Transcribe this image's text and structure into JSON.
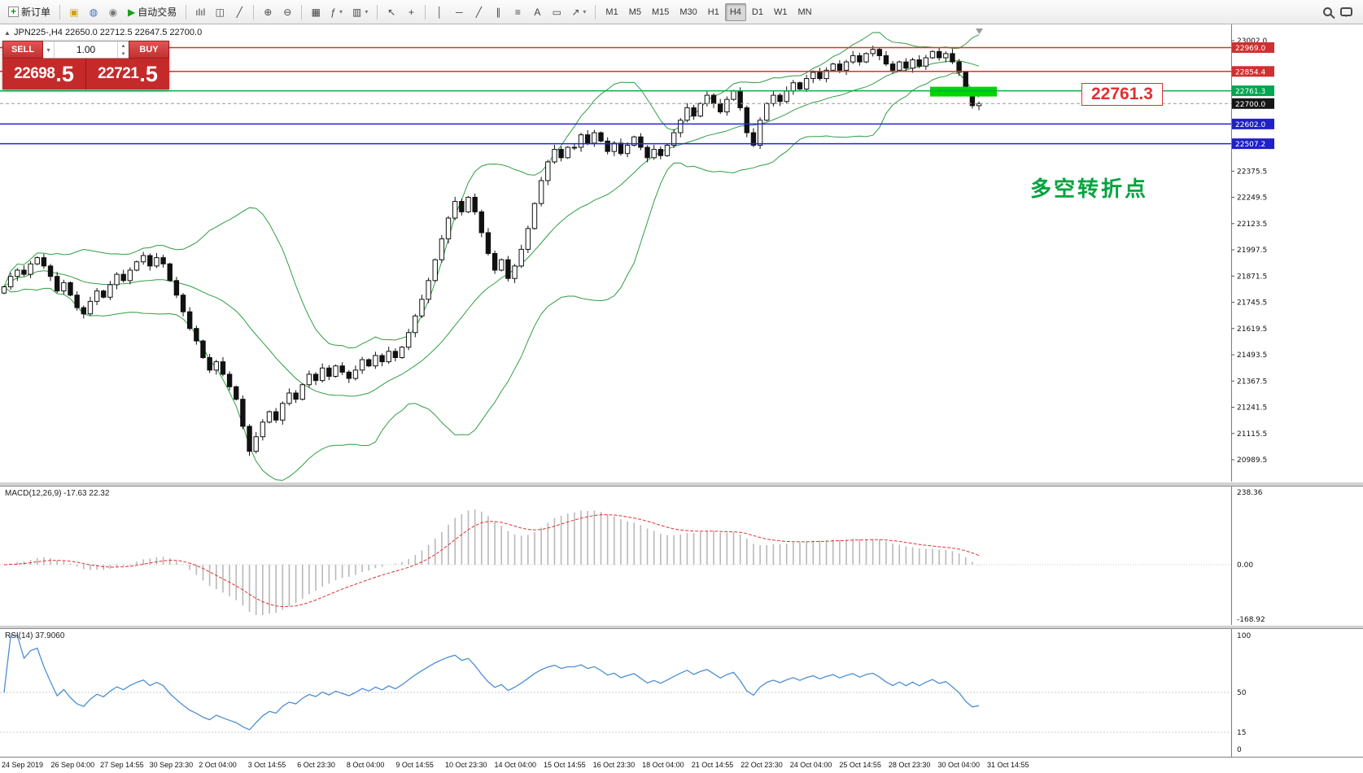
{
  "toolbar": {
    "new_order_label": "新订单",
    "auto_trading_label": "自动交易",
    "timeframes": [
      "M1",
      "M5",
      "M15",
      "M30",
      "H1",
      "H4",
      "D1",
      "W1",
      "MN"
    ],
    "active_timeframe": "H4",
    "icons": {
      "new_order": "▤",
      "profiles": "▣",
      "alerts": "◍",
      "community": "◉",
      "autoplay": "▶",
      "bar_chart": "ılıl",
      "candlestick": "◫",
      "line_chart": "╱",
      "zoom_in": "⊕",
      "zoom_out": "⊖",
      "tile_windows": "▦",
      "indicators": "ƒ",
      "templates": "▥",
      "cursor": "↖",
      "crosshair": "+",
      "vline": "│",
      "hline": "─",
      "trendline": "╱",
      "channel": "∥",
      "fibonacci": "≡",
      "text": "A",
      "label": "▭",
      "arrows": "↗",
      "dropdown": "▾"
    }
  },
  "symbol_header": {
    "symbol_period": "JPN225-,H4",
    "ohlc_text": "22650.0 22712.5 22647.5 22700.0"
  },
  "trade_panel": {
    "sell_label": "SELL",
    "buy_label": "BUY",
    "volume": "1.00",
    "sell_price_main": "22698",
    "sell_price_frac": ".5",
    "buy_price_main": "22721",
    "buy_price_frac": ".5"
  },
  "annotations": {
    "turning_point_text": "多空转折点",
    "price_callout": "22761.3"
  },
  "price_scale": {
    "ticks": [
      "23002.0",
      "22375.5",
      "22249.5",
      "22123.5",
      "21997.5",
      "21871.5",
      "21745.5",
      "21619.5",
      "21493.5",
      "21367.5",
      "21241.5",
      "21115.5",
      "20989.5"
    ],
    "badges": [
      {
        "label": "22969.0",
        "value": 22969.0,
        "color": "#d03030"
      },
      {
        "label": "22854.4",
        "value": 22854.4,
        "color": "#d03030"
      },
      {
        "label": "22761.3",
        "value": 22761.3,
        "color": "#00a651"
      },
      {
        "label": "22700.0",
        "value": 22700.0,
        "color": "#151515"
      },
      {
        "label": "22602.0",
        "value": 22602.0,
        "color": "#2020c8"
      },
      {
        "label": "22507.2",
        "value": 22507.2,
        "color": "#2020c8"
      }
    ]
  },
  "chart_data": {
    "type": "candlestick",
    "symbol": "JPN225-",
    "timeframe": "H4",
    "ohlc_display": {
      "open": "22650.0",
      "high": "22712.5",
      "low": "22647.5",
      "close": "22700.0"
    },
    "y_axis_range": [
      20989.5,
      23002.0
    ],
    "closes": [
      21820,
      21870,
      21900,
      21880,
      21930,
      21960,
      21920,
      21870,
      21800,
      21840,
      21780,
      21720,
      21690,
      21750,
      21800,
      21770,
      21830,
      21880,
      21850,
      21900,
      21940,
      21970,
      21920,
      21960,
      21930,
      21850,
      21780,
      21700,
      21620,
      21560,
      21480,
      21420,
      21460,
      21400,
      21340,
      21280,
      21150,
      21030,
      21100,
      21170,
      21220,
      21180,
      21260,
      21310,
      21280,
      21350,
      21400,
      21370,
      21430,
      21390,
      21440,
      21410,
      21380,
      21420,
      21470,
      21440,
      21490,
      21460,
      21510,
      21480,
      21530,
      21600,
      21680,
      21760,
      21850,
      21950,
      22050,
      22150,
      22230,
      22180,
      22250,
      22180,
      22080,
      21980,
      21900,
      21950,
      21860,
      21920,
      22000,
      22100,
      22220,
      22330,
      22420,
      22480,
      22440,
      22490,
      22490,
      22550,
      22510,
      22560,
      22520,
      22470,
      22510,
      22460,
      22500,
      22540,
      22490,
      22440,
      22480,
      22450,
      22500,
      22560,
      22620,
      22680,
      22640,
      22700,
      22740,
      22700,
      22660,
      22720,
      22760,
      22680,
      22560,
      22500,
      22620,
      22700,
      22740,
      22710,
      22760,
      22800,
      22770,
      22820,
      22850,
      22820,
      22860,
      22890,
      22860,
      22900,
      22930,
      22900,
      22940,
      22960,
      22930,
      22890,
      22860,
      22900,
      22870,
      22910,
      22880,
      22920,
      22950,
      22920,
      22940,
      22900,
      22850,
      22760,
      22690,
      22700
    ],
    "levels": [
      {
        "value": 22969.0,
        "color": "#e03030",
        "style": "solid"
      },
      {
        "value": 22854.4,
        "color": "#e03030",
        "style": "solid"
      },
      {
        "value": 22761.3,
        "color": "#00b140",
        "style": "solid"
      },
      {
        "value": 22602.0,
        "color": "#2424d4",
        "style": "solid"
      },
      {
        "value": 22507.2,
        "color": "#2424d4",
        "style": "solid"
      },
      {
        "value": 22700.0,
        "color": "#999999",
        "style": "dashed"
      }
    ],
    "highlight_zone": {
      "value": 22761.3,
      "color": "#00d500"
    },
    "bollinger": {
      "period": 20,
      "deviation": 2,
      "color": "#2f9e44"
    },
    "x_labels": [
      "24 Sep 2019",
      "26 Sep 04:00",
      "27 Sep 14:55",
      "30 Sep 23:30",
      "2 Oct 04:00",
      "3 Oct 14:55",
      "6 Oct 23:30",
      "8 Oct 04:00",
      "9 Oct 14:55",
      "10 Oct 23:30",
      "14 Oct 04:00",
      "15 Oct 14:55",
      "16 Oct 23:30",
      "18 Oct 04:00",
      "21 Oct 14:55",
      "22 Oct 23:30",
      "24 Oct 04:00",
      "25 Oct 14:55",
      "28 Oct 23:30",
      "30 Oct 04:00",
      "31 Oct 14:55"
    ],
    "macd": {
      "label": "MACD(12,26,9)",
      "values_text": "-17.63 22.32",
      "scale_labels": [
        "238.36",
        "0.00",
        "-168.92"
      ],
      "params": [
        12,
        26,
        9
      ]
    },
    "rsi": {
      "label": "RSI(14)",
      "value_text": "37.9060",
      "scale_labels": [
        "100",
        "50",
        "15",
        "0"
      ],
      "period": 14
    }
  }
}
